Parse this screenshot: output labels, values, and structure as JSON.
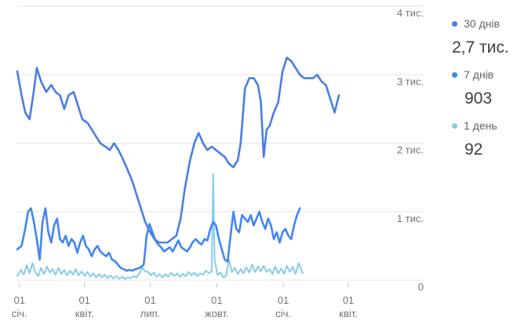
{
  "chart_data": {
    "type": "line",
    "y_ticks": [
      "0",
      "1 тис.",
      "2 тис.",
      "3 тис.",
      "4 тис."
    ],
    "y_tick_values": [
      0,
      1000,
      2000,
      3000,
      4000
    ],
    "ylim": [
      0,
      4000
    ],
    "x_ticks": [
      {
        "day": "01",
        "month": "січ.",
        "pos": 0
      },
      {
        "day": "01",
        "month": "квіт.",
        "pos": 90
      },
      {
        "day": "01",
        "month": "лип.",
        "pos": 181
      },
      {
        "day": "01",
        "month": "жовт.",
        "pos": 273
      },
      {
        "day": "01",
        "month": "січ.",
        "pos": 365
      },
      {
        "day": "01",
        "month": "квіт.",
        "pos": 455
      }
    ],
    "xlim": [
      -3,
      505
    ],
    "grid": true,
    "legend_position": "right",
    "series": [
      {
        "name": "30 днів",
        "color": "#4a7ee3",
        "latest_value": "2,7 тис.",
        "points": [
          [
            -3,
            3050
          ],
          [
            3,
            2700
          ],
          [
            8,
            2450
          ],
          [
            14,
            2350
          ],
          [
            19,
            2700
          ],
          [
            24,
            3100
          ],
          [
            30,
            2900
          ],
          [
            37,
            2750
          ],
          [
            44,
            2850
          ],
          [
            50,
            2750
          ],
          [
            56,
            2700
          ],
          [
            62,
            2500
          ],
          [
            68,
            2700
          ],
          [
            75,
            2750
          ],
          [
            81,
            2550
          ],
          [
            87,
            2350
          ],
          [
            94,
            2300
          ],
          [
            100,
            2200
          ],
          [
            106,
            2100
          ],
          [
            112,
            2000
          ],
          [
            119,
            1950
          ],
          [
            125,
            1900
          ],
          [
            131,
            2000
          ],
          [
            137,
            1900
          ],
          [
            144,
            1750
          ],
          [
            150,
            1600
          ],
          [
            156,
            1450
          ],
          [
            162,
            1250
          ],
          [
            168,
            1050
          ],
          [
            174,
            850
          ],
          [
            181,
            700
          ],
          [
            187,
            600
          ],
          [
            193,
            550
          ],
          [
            199,
            550
          ],
          [
            205,
            550
          ],
          [
            211,
            600
          ],
          [
            217,
            650
          ],
          [
            223,
            900
          ],
          [
            229,
            1350
          ],
          [
            236,
            1750
          ],
          [
            242,
            2000
          ],
          [
            248,
            2150
          ],
          [
            254,
            2000
          ],
          [
            260,
            1900
          ],
          [
            266,
            1950
          ],
          [
            272,
            1900
          ],
          [
            278,
            1850
          ],
          [
            284,
            1800
          ],
          [
            290,
            1700
          ],
          [
            296,
            1650
          ],
          [
            302,
            1750
          ],
          [
            306,
            2000
          ],
          [
            312,
            2800
          ],
          [
            318,
            2950
          ],
          [
            324,
            2950
          ],
          [
            330,
            2850
          ],
          [
            334,
            2600
          ],
          [
            338,
            1800
          ],
          [
            342,
            2200
          ],
          [
            346,
            2250
          ],
          [
            352,
            2450
          ],
          [
            358,
            2600
          ],
          [
            364,
            3050
          ],
          [
            370,
            3250
          ],
          [
            376,
            3200
          ],
          [
            382,
            3100
          ],
          [
            388,
            3000
          ],
          [
            394,
            2950
          ],
          [
            400,
            2950
          ],
          [
            406,
            2950
          ],
          [
            412,
            3000
          ],
          [
            418,
            2900
          ],
          [
            424,
            2850
          ],
          [
            430,
            2650
          ],
          [
            436,
            2450
          ],
          [
            442,
            2700
          ]
        ]
      },
      {
        "name": "7 днів",
        "color": "#4285f4",
        "latest_value": "903",
        "points": [
          [
            -3,
            450
          ],
          [
            3,
            500
          ],
          [
            8,
            750
          ],
          [
            12,
            1000
          ],
          [
            16,
            1050
          ],
          [
            20,
            850
          ],
          [
            24,
            600
          ],
          [
            28,
            300
          ],
          [
            32,
            850
          ],
          [
            36,
            1050
          ],
          [
            40,
            700
          ],
          [
            44,
            550
          ],
          [
            48,
            800
          ],
          [
            52,
            900
          ],
          [
            56,
            600
          ],
          [
            60,
            550
          ],
          [
            64,
            650
          ],
          [
            68,
            500
          ],
          [
            72,
            600
          ],
          [
            76,
            550
          ],
          [
            80,
            400
          ],
          [
            84,
            550
          ],
          [
            88,
            650
          ],
          [
            92,
            500
          ],
          [
            96,
            450
          ],
          [
            100,
            350
          ],
          [
            104,
            450
          ],
          [
            108,
            500
          ],
          [
            112,
            420
          ],
          [
            116,
            380
          ],
          [
            120,
            350
          ],
          [
            124,
            400
          ],
          [
            128,
            300
          ],
          [
            132,
            280
          ],
          [
            136,
            230
          ],
          [
            140,
            180
          ],
          [
            144,
            160
          ],
          [
            148,
            140
          ],
          [
            152,
            150
          ],
          [
            156,
            140
          ],
          [
            160,
            160
          ],
          [
            164,
            170
          ],
          [
            168,
            190
          ],
          [
            172,
            230
          ],
          [
            176,
            650
          ],
          [
            180,
            820
          ],
          [
            184,
            700
          ],
          [
            188,
            580
          ],
          [
            192,
            520
          ],
          [
            196,
            480
          ],
          [
            200,
            420
          ],
          [
            204,
            450
          ],
          [
            208,
            480
          ],
          [
            212,
            420
          ],
          [
            216,
            500
          ],
          [
            220,
            580
          ],
          [
            224,
            480
          ],
          [
            228,
            450
          ],
          [
            232,
            420
          ],
          [
            236,
            480
          ],
          [
            240,
            560
          ],
          [
            244,
            600
          ],
          [
            248,
            550
          ],
          [
            252,
            520
          ],
          [
            256,
            600
          ],
          [
            260,
            580
          ],
          [
            264,
            750
          ],
          [
            268,
            850
          ],
          [
            272,
            800
          ],
          [
            276,
            600
          ],
          [
            280,
            450
          ],
          [
            284,
            300
          ],
          [
            288,
            270
          ],
          [
            292,
            650
          ],
          [
            296,
            1000
          ],
          [
            300,
            750
          ],
          [
            304,
            700
          ],
          [
            308,
            950
          ],
          [
            312,
            900
          ],
          [
            316,
            850
          ],
          [
            320,
            950
          ],
          [
            324,
            800
          ],
          [
            328,
            900
          ],
          [
            332,
            1000
          ],
          [
            336,
            850
          ],
          [
            340,
            750
          ],
          [
            344,
            900
          ],
          [
            348,
            800
          ],
          [
            352,
            600
          ],
          [
            356,
            700
          ],
          [
            360,
            550
          ],
          [
            364,
            700
          ],
          [
            368,
            750
          ],
          [
            372,
            650
          ],
          [
            376,
            600
          ],
          [
            380,
            800
          ],
          [
            384,
            950
          ],
          [
            388,
            1050
          ]
        ]
      },
      {
        "name": "1 день",
        "color": "#85cde8",
        "latest_value": "92",
        "points": [
          [
            -3,
            60
          ],
          [
            2,
            150
          ],
          [
            6,
            80
          ],
          [
            10,
            220
          ],
          [
            14,
            100
          ],
          [
            18,
            250
          ],
          [
            22,
            120
          ],
          [
            26,
            60
          ],
          [
            30,
            180
          ],
          [
            34,
            90
          ],
          [
            38,
            200
          ],
          [
            42,
            110
          ],
          [
            46,
            160
          ],
          [
            50,
            80
          ],
          [
            54,
            180
          ],
          [
            58,
            90
          ],
          [
            62,
            150
          ],
          [
            66,
            70
          ],
          [
            70,
            140
          ],
          [
            74,
            80
          ],
          [
            78,
            160
          ],
          [
            82,
            70
          ],
          [
            86,
            130
          ],
          [
            90,
            60
          ],
          [
            94,
            120
          ],
          [
            98,
            50
          ],
          [
            102,
            100
          ],
          [
            106,
            40
          ],
          [
            110,
            90
          ],
          [
            114,
            40
          ],
          [
            118,
            80
          ],
          [
            122,
            30
          ],
          [
            126,
            70
          ],
          [
            130,
            25
          ],
          [
            134,
            60
          ],
          [
            138,
            20
          ],
          [
            142,
            50
          ],
          [
            146,
            20
          ],
          [
            150,
            40
          ],
          [
            154,
            30
          ],
          [
            158,
            60
          ],
          [
            162,
            40
          ],
          [
            166,
            100
          ],
          [
            170,
            180
          ],
          [
            174,
            130
          ],
          [
            178,
            120
          ],
          [
            182,
            70
          ],
          [
            186,
            110
          ],
          [
            190,
            50
          ],
          [
            194,
            90
          ],
          [
            198,
            40
          ],
          [
            202,
            90
          ],
          [
            206,
            50
          ],
          [
            210,
            110
          ],
          [
            214,
            60
          ],
          [
            218,
            100
          ],
          [
            222,
            50
          ],
          [
            226,
            90
          ],
          [
            230,
            60
          ],
          [
            234,
            120
          ],
          [
            238,
            70
          ],
          [
            242,
            110
          ],
          [
            246,
            60
          ],
          [
            250,
            100
          ],
          [
            254,
            80
          ],
          [
            258,
            140
          ],
          [
            262,
            100
          ],
          [
            266,
            130
          ],
          [
            268,
            1550
          ],
          [
            270,
            300
          ],
          [
            274,
            80
          ],
          [
            278,
            110
          ],
          [
            282,
            40
          ],
          [
            286,
            60
          ],
          [
            290,
            300
          ],
          [
            294,
            120
          ],
          [
            298,
            180
          ],
          [
            302,
            90
          ],
          [
            306,
            160
          ],
          [
            310,
            100
          ],
          [
            314,
            190
          ],
          [
            318,
            110
          ],
          [
            322,
            230
          ],
          [
            326,
            120
          ],
          [
            330,
            200
          ],
          [
            334,
            130
          ],
          [
            338,
            210
          ],
          [
            342,
            120
          ],
          [
            346,
            160
          ],
          [
            350,
            90
          ],
          [
            354,
            200
          ],
          [
            358,
            100
          ],
          [
            362,
            170
          ],
          [
            366,
            90
          ],
          [
            370,
            210
          ],
          [
            374,
            120
          ],
          [
            378,
            190
          ],
          [
            382,
            90
          ],
          [
            386,
            250
          ],
          [
            390,
            150
          ],
          [
            392,
            100
          ]
        ]
      }
    ]
  }
}
